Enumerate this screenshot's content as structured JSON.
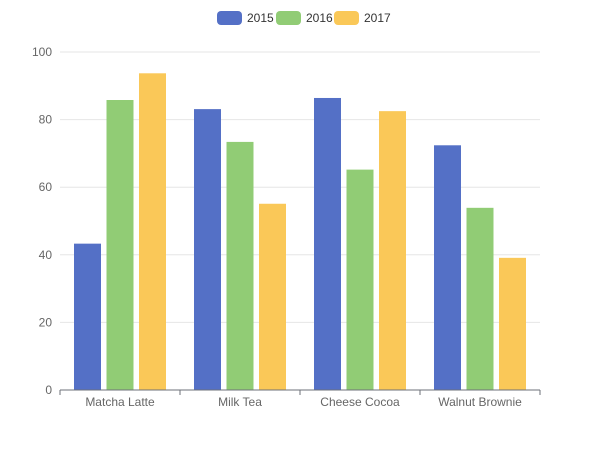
{
  "chart_data": {
    "type": "bar",
    "title": "",
    "xlabel": "",
    "ylabel": "",
    "categories": [
      "Matcha Latte",
      "Milk Tea",
      "Cheese Cocoa",
      "Walnut Brownie"
    ],
    "series": [
      {
        "name": "2015",
        "color": "#5470c6",
        "values": [
          43.3,
          83.1,
          86.4,
          72.4
        ]
      },
      {
        "name": "2016",
        "color": "#91cc75",
        "values": [
          85.8,
          73.4,
          65.2,
          53.9
        ]
      },
      {
        "name": "2017",
        "color": "#fac858",
        "values": [
          93.7,
          55.1,
          82.5,
          39.1
        ]
      }
    ],
    "ylim": [
      0,
      100
    ],
    "yticks": [
      0,
      20,
      40,
      60,
      80,
      100
    ],
    "grid": true,
    "legend_position": "top-center"
  }
}
